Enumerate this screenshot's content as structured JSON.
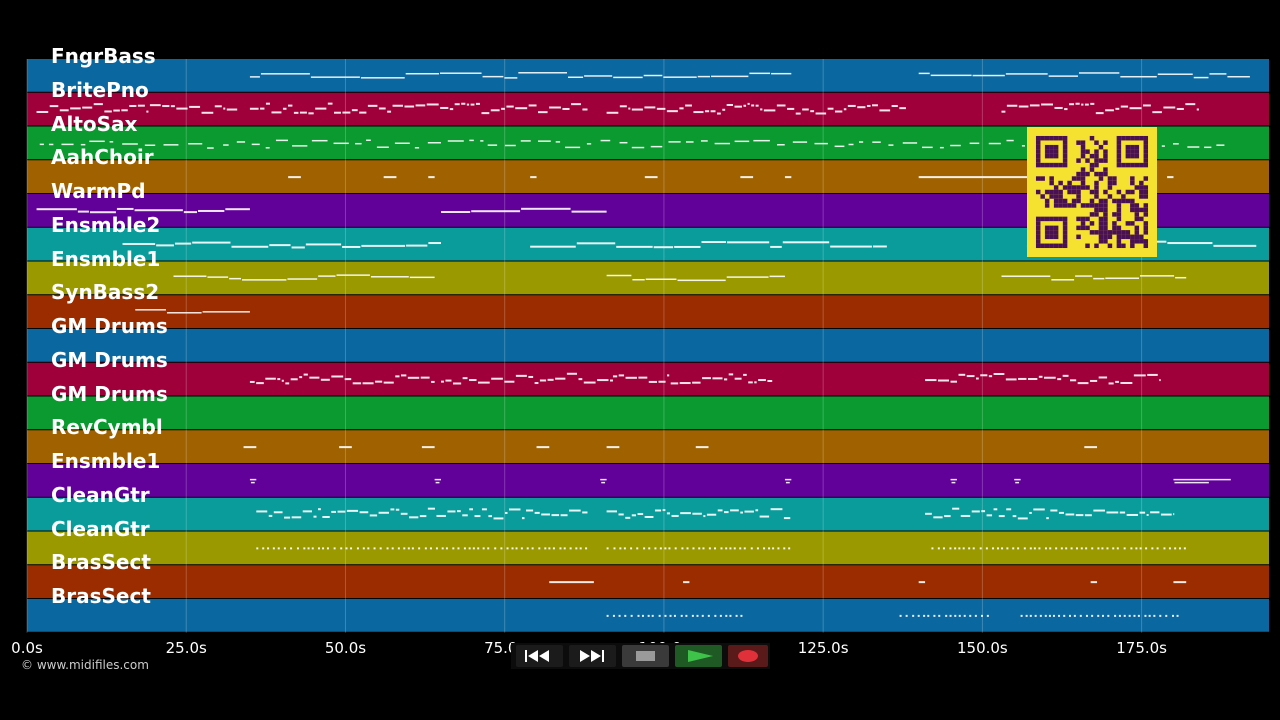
{
  "credit": "© www.midifiles.com",
  "timeline": {
    "ticks": [
      "0.0s",
      "25.0s",
      "50.0s",
      "75.0s",
      "100.0s",
      "125.0s",
      "150.0s",
      "175.0s"
    ],
    "tick_seconds": [
      0,
      25,
      50,
      75,
      100,
      125,
      150,
      175
    ],
    "duration_seconds": 195
  },
  "colors": {
    "rows": [
      "#0a67a0",
      "#a0003a",
      "#0a9a2f",
      "#a06200",
      "#62009a",
      "#0a9b9b",
      "#9a9a00",
      "#9a2c00"
    ],
    "note": "#ffffff",
    "background": "#000000",
    "qr_fill": "#f5e12f",
    "qr_ink": "#4a1054"
  },
  "tracks": [
    {
      "name": "FngrBass"
    },
    {
      "name": "BritePno"
    },
    {
      "name": "AltoSax"
    },
    {
      "name": "AahChoir"
    },
    {
      "name": "WarmPd"
    },
    {
      "name": "Ensmble2"
    },
    {
      "name": "Ensmble1"
    },
    {
      "name": "SynBass2"
    },
    {
      "name": "GM Drums"
    },
    {
      "name": "GM Drums"
    },
    {
      "name": "GM Drums"
    },
    {
      "name": "RevCymbl"
    },
    {
      "name": "Ensmble1"
    },
    {
      "name": "CleanGtr"
    },
    {
      "name": "CleanGtr"
    },
    {
      "name": "BrasSect"
    },
    {
      "name": "BrasSect"
    }
  ],
  "note_runs": [
    {
      "row": 0,
      "segments": [
        [
          35,
          120
        ],
        [
          140,
          192
        ]
      ],
      "style": "line"
    },
    {
      "row": 1,
      "segments": [
        [
          1.5,
          33
        ],
        [
          35,
          88
        ],
        [
          91,
          138
        ],
        [
          153,
          184
        ]
      ],
      "style": "dense"
    },
    {
      "row": 2,
      "segments": [
        [
          2,
          188
        ]
      ],
      "style": "dash"
    },
    {
      "row": 3,
      "segments": [
        [
          41,
          43
        ],
        [
          56,
          58
        ],
        [
          63,
          64
        ],
        [
          79,
          80
        ],
        [
          97,
          99
        ],
        [
          112,
          114
        ],
        [
          119,
          120
        ],
        [
          140,
          163
        ],
        [
          172,
          174
        ],
        [
          179,
          180
        ]
      ],
      "style": "short"
    },
    {
      "row": 4,
      "segments": [
        [
          1.5,
          35
        ],
        [
          65,
          91
        ]
      ],
      "style": "bar"
    },
    {
      "row": 5,
      "segments": [
        [
          15,
          65
        ],
        [
          79,
          135
        ],
        [
          157,
          193
        ]
      ],
      "style": "bar"
    },
    {
      "row": 6,
      "segments": [
        [
          23,
          64
        ],
        [
          91,
          119
        ],
        [
          153,
          182
        ]
      ],
      "style": "line"
    },
    {
      "row": 7,
      "segments": [
        [
          17,
          35
        ]
      ],
      "style": "line"
    },
    {
      "row": 9,
      "segments": [
        [
          35,
          64
        ],
        [
          65,
          92
        ],
        [
          92,
          117
        ],
        [
          141,
          178
        ]
      ],
      "style": "dense"
    },
    {
      "row": 11,
      "segments": [
        [
          34,
          36
        ],
        [
          49,
          51
        ],
        [
          62,
          64
        ],
        [
          80,
          82
        ],
        [
          91,
          93
        ],
        [
          105,
          107
        ],
        [
          166,
          168
        ]
      ],
      "style": "short"
    },
    {
      "row": 12,
      "segments": [
        [
          35,
          36
        ],
        [
          64,
          65
        ],
        [
          90,
          91
        ],
        [
          119,
          120
        ],
        [
          145,
          146
        ],
        [
          155,
          156
        ],
        [
          180,
          189
        ]
      ],
      "style": "tick"
    },
    {
      "row": 13,
      "segments": [
        [
          36,
          88
        ],
        [
          91,
          120
        ],
        [
          141,
          180
        ]
      ],
      "style": "dense"
    },
    {
      "row": 14,
      "segments": [
        [
          36,
          88
        ],
        [
          91,
          120
        ],
        [
          142,
          182
        ]
      ],
      "style": "dots"
    },
    {
      "row": 15,
      "segments": [
        [
          82,
          89
        ],
        [
          103,
          104
        ],
        [
          140,
          141
        ],
        [
          167,
          168
        ],
        [
          180,
          182
        ]
      ],
      "style": "short"
    },
    {
      "row": 16,
      "segments": [
        [
          91,
          113
        ],
        [
          137,
          151
        ],
        [
          156,
          181
        ]
      ],
      "style": "dots"
    }
  ],
  "transport": {
    "buttons": [
      {
        "name": "rewind-button",
        "icon": "rewind-icon",
        "color": "#1b1b1b"
      },
      {
        "name": "fast-forward-button",
        "icon": "fast-forward-icon",
        "color": "#1b1b1b"
      },
      {
        "name": "stop-button",
        "icon": "stop-icon",
        "color": "#3a3a3a"
      },
      {
        "name": "play-button",
        "icon": "play-icon",
        "color": "#1f5a24"
      },
      {
        "name": "record-button",
        "icon": "record-icon",
        "color": "#5a1a1a"
      }
    ]
  },
  "qr_code": {
    "icon": "qr-code-icon"
  }
}
